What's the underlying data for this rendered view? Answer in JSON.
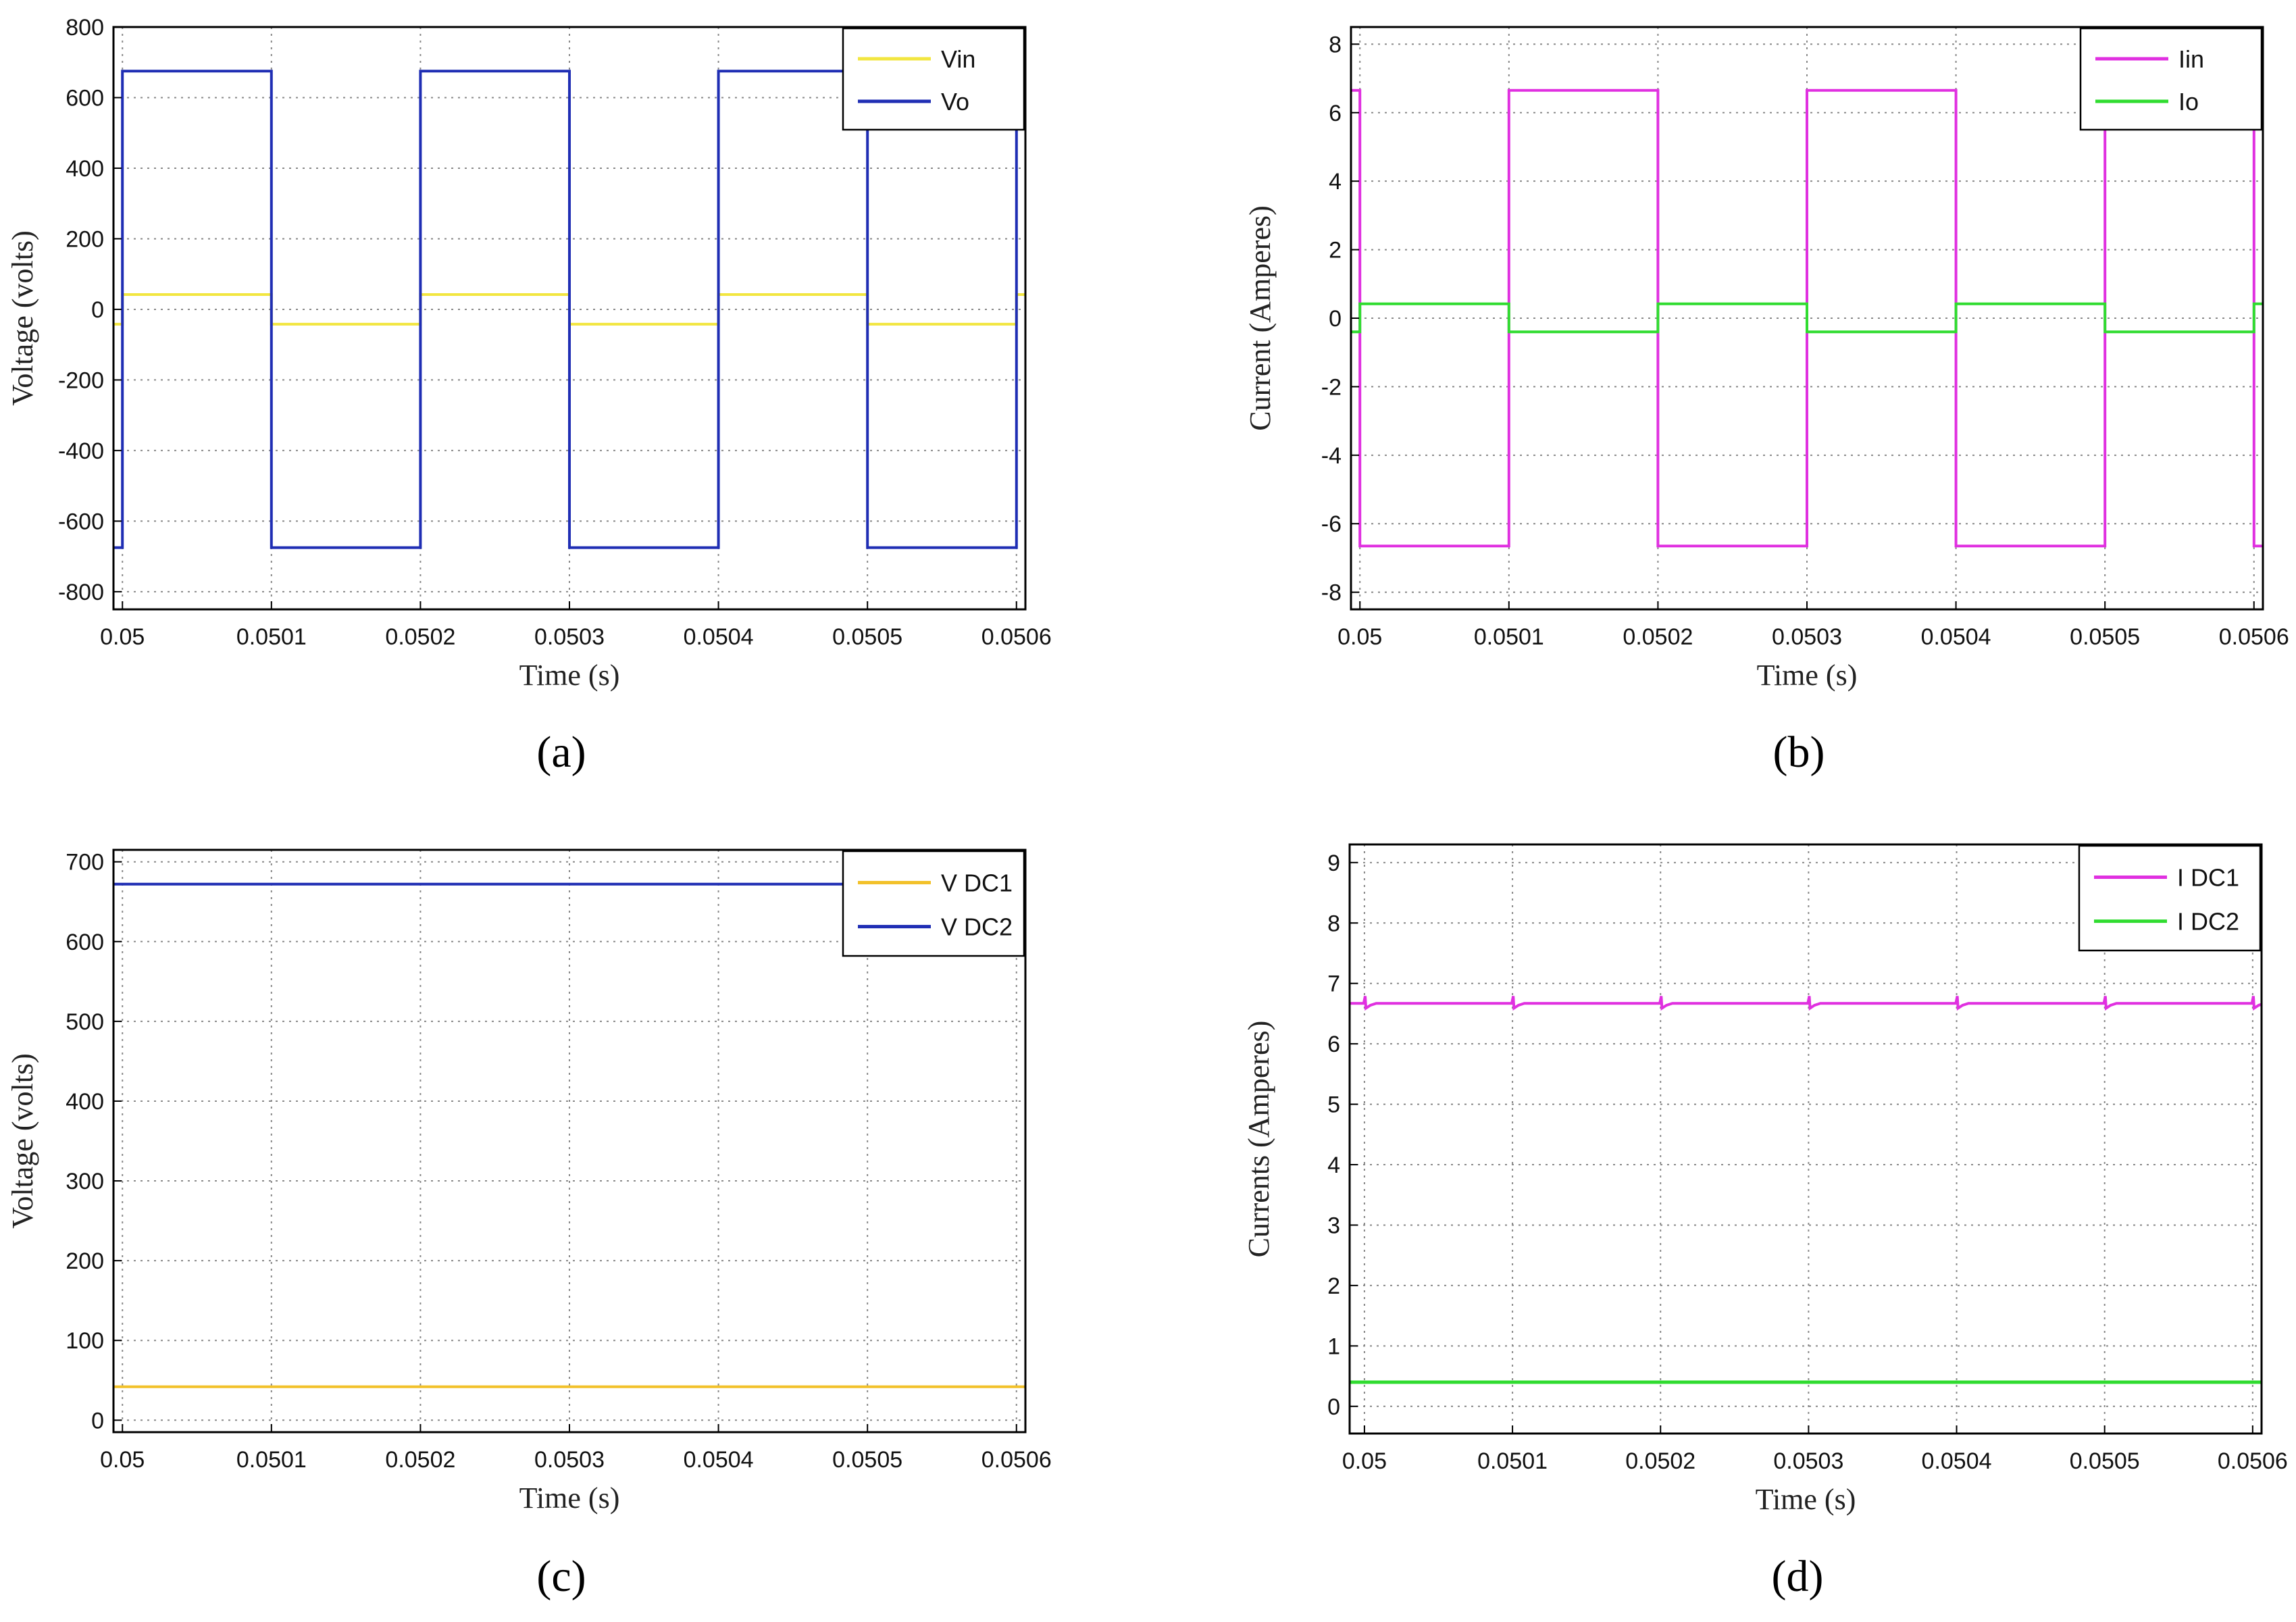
{
  "panels": [
    {
      "label": "(a)",
      "chart_data": {
        "type": "line",
        "xlabel": "Time (s)",
        "ylabel": "Voltage (volts)",
        "xlim": [
          0.049994,
          0.050606
        ],
        "ylim": [
          -850,
          800
        ],
        "xticks": [
          "0.05",
          "0.0501",
          "0.0502",
          "0.0503",
          "0.0504",
          "0.0505",
          "0.0506"
        ],
        "yticks": [
          "-800",
          "-600",
          "-400",
          "-200",
          "0",
          "200",
          "400",
          "600",
          "800"
        ],
        "legend_position": "top-right",
        "series": [
          {
            "name": "Vin",
            "color": "#f2e640",
            "shape": "square-wave",
            "period": 0.0002,
            "rise_time": 0.05,
            "duty_phase": "high-first-half",
            "high": 42,
            "low": -42
          },
          {
            "name": "Vo",
            "color": "#1f2eb4",
            "shape": "square-wave",
            "period": 0.0002,
            "rise_time": 0.05,
            "duty_phase": "high-first-half",
            "high": 675,
            "low": -675
          }
        ]
      }
    },
    {
      "label": "(b)",
      "chart_data": {
        "type": "line",
        "xlabel": "Time (s)",
        "ylabel": "Current (Amperes)",
        "xlim": [
          0.049994,
          0.050606
        ],
        "ylim": [
          -8.5,
          8.5
        ],
        "xticks": [
          "0.05",
          "0.0501",
          "0.0502",
          "0.0503",
          "0.0504",
          "0.0505",
          "0.0506"
        ],
        "yticks": [
          "-8",
          "-6",
          "-4",
          "-2",
          "0",
          "2",
          "4",
          "6",
          "8"
        ],
        "legend_position": "top-right",
        "series": [
          {
            "name": "Iin",
            "color": "#e030e0",
            "shape": "square-wave",
            "period": 0.0002,
            "rise_time": 0.0501,
            "duty_phase": "high-first-half",
            "high": 6.65,
            "low": -6.65
          },
          {
            "name": "Io",
            "color": "#30dc30",
            "shape": "square-wave",
            "period": 0.0002,
            "rise_time": 0.0501,
            "duty_phase": "low-first-half",
            "high": 0.42,
            "low": -0.4
          }
        ]
      }
    },
    {
      "label": "(c)",
      "chart_data": {
        "type": "line",
        "xlabel": "Time (s)",
        "ylabel": "Voltage (volts)",
        "xlim": [
          0.049994,
          0.050606
        ],
        "ylim": [
          -15,
          715
        ],
        "xticks": [
          "0.05",
          "0.0501",
          "0.0502",
          "0.0503",
          "0.0504",
          "0.0505",
          "0.0506"
        ],
        "yticks": [
          "0",
          "100",
          "200",
          "300",
          "400",
          "500",
          "600",
          "700"
        ],
        "legend_position": "top-right",
        "series": [
          {
            "name": "V DC1",
            "color": "#f2c12a",
            "shape": "constant",
            "value": 42
          },
          {
            "name": "V DC2",
            "color": "#1f2eb4",
            "shape": "constant",
            "value": 672
          }
        ]
      }
    },
    {
      "label": "(d)",
      "chart_data": {
        "type": "line",
        "xlabel": "Time (s)",
        "ylabel": "Currents (Amperes)",
        "xlim": [
          0.04999,
          0.050606
        ],
        "ylim": [
          -0.45,
          9.3
        ],
        "xticks": [
          "0.05",
          "0.0501",
          "0.0502",
          "0.0503",
          "0.0504",
          "0.0505",
          "0.0506"
        ],
        "yticks": [
          "0",
          "1",
          "2",
          "3",
          "4",
          "5",
          "6",
          "7",
          "8",
          "9"
        ],
        "legend_position": "top-right",
        "series": [
          {
            "name": "I DC1",
            "color": "#e030e0",
            "shape": "constant-with-dips",
            "value": 6.67,
            "dip_period": 0.0001,
            "dip_first": 0.05,
            "dip_depth": 0.08
          },
          {
            "name": "I DC2",
            "color": "#30dc30",
            "shape": "constant",
            "value": 0.4
          }
        ]
      }
    }
  ]
}
